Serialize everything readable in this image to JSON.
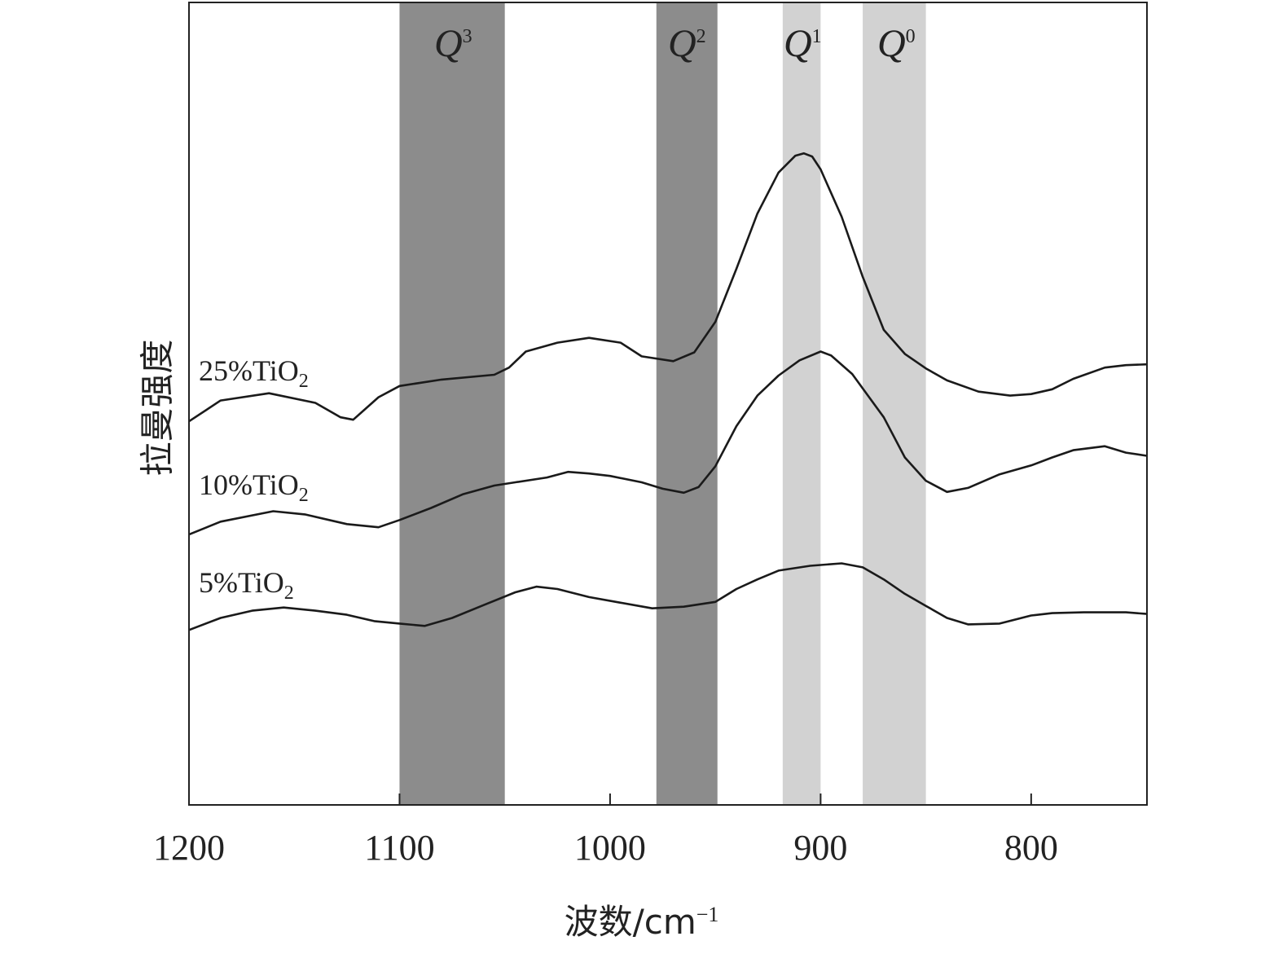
{
  "chart_data": {
    "type": "line",
    "xlabel_main": "波数/cm",
    "xlabel_sup": "−1",
    "ylabel": "拉曼强度",
    "xlim": [
      1200,
      745
    ],
    "x_reversed": true,
    "ylim": [
      0,
      100
    ],
    "x_ticks": [
      1200,
      1100,
      1000,
      900,
      800
    ],
    "grid": false,
    "bands": [
      {
        "label": "Q",
        "sup": "3",
        "from": 1100,
        "to": 1050,
        "color": "#8c8c8c"
      },
      {
        "label": "Q",
        "sup": "2",
        "from": 978,
        "to": 949,
        "color": "#8c8c8c"
      },
      {
        "label": "Q",
        "sup": "1",
        "from": 918,
        "to": 900,
        "color": "#d2d2d2"
      },
      {
        "label": "Q",
        "sup": "0",
        "from": 880,
        "to": 850,
        "color": "#d2d2d2"
      }
    ],
    "series": [
      {
        "label": "25%TiO",
        "label_sub": "2",
        "x": [
          1200,
          1185,
          1162,
          1140,
          1128,
          1122,
          1110,
          1100,
          1080,
          1055,
          1048,
          1040,
          1025,
          1010,
          995,
          985,
          970,
          960,
          950,
          940,
          930,
          920,
          912,
          908,
          904,
          900,
          890,
          880,
          870,
          860,
          850,
          840,
          825,
          810,
          800,
          790,
          780,
          765,
          755,
          745
        ],
        "y": [
          47.8,
          50.4,
          51.3,
          50.1,
          48.3,
          48.0,
          50.8,
          52.2,
          53.0,
          53.6,
          54.5,
          56.5,
          57.6,
          58.2,
          57.6,
          55.9,
          55.3,
          56.4,
          60.2,
          66.8,
          73.7,
          78.8,
          80.9,
          81.2,
          80.8,
          79.2,
          73.3,
          65.8,
          59.2,
          56.2,
          54.4,
          52.9,
          51.5,
          51.0,
          51.2,
          51.8,
          53.1,
          54.5,
          54.8,
          54.9
        ]
      },
      {
        "label": "10%TiO",
        "label_sub": "2",
        "x": [
          1200,
          1185,
          1160,
          1145,
          1125,
          1110,
          1100,
          1085,
          1070,
          1055,
          1045,
          1030,
          1020,
          1010,
          1000,
          985,
          975,
          965,
          958,
          950,
          940,
          930,
          920,
          910,
          900,
          895,
          885,
          870,
          860,
          850,
          840,
          830,
          815,
          800,
          790,
          780,
          765,
          755,
          745
        ],
        "y": [
          33.7,
          35.3,
          36.6,
          36.2,
          35.0,
          34.6,
          35.5,
          37.0,
          38.7,
          39.8,
          40.2,
          40.8,
          41.5,
          41.3,
          41.0,
          40.2,
          39.4,
          38.9,
          39.6,
          42.2,
          47.2,
          51.0,
          53.5,
          55.4,
          56.5,
          56.0,
          53.7,
          48.3,
          43.3,
          40.4,
          39.0,
          39.5,
          41.2,
          42.3,
          43.3,
          44.2,
          44.7,
          43.9,
          43.5
        ]
      },
      {
        "label": "5%TiO",
        "label_sub": "2",
        "x": [
          1200,
          1185,
          1170,
          1155,
          1140,
          1125,
          1112,
          1100,
          1088,
          1075,
          1060,
          1045,
          1035,
          1025,
          1010,
          995,
          980,
          965,
          950,
          940,
          930,
          920,
          905,
          890,
          880,
          870,
          860,
          850,
          840,
          830,
          815,
          800,
          790,
          775,
          765,
          755,
          745
        ],
        "y": [
          21.8,
          23.3,
          24.2,
          24.6,
          24.2,
          23.7,
          22.9,
          22.6,
          22.3,
          23.3,
          24.9,
          26.5,
          27.2,
          26.9,
          25.9,
          25.2,
          24.5,
          24.7,
          25.3,
          26.9,
          28.1,
          29.2,
          29.8,
          30.1,
          29.6,
          28.1,
          26.3,
          24.8,
          23.3,
          22.5,
          22.6,
          23.6,
          23.9,
          24.0,
          24.0,
          24.0,
          23.8
        ]
      }
    ]
  }
}
